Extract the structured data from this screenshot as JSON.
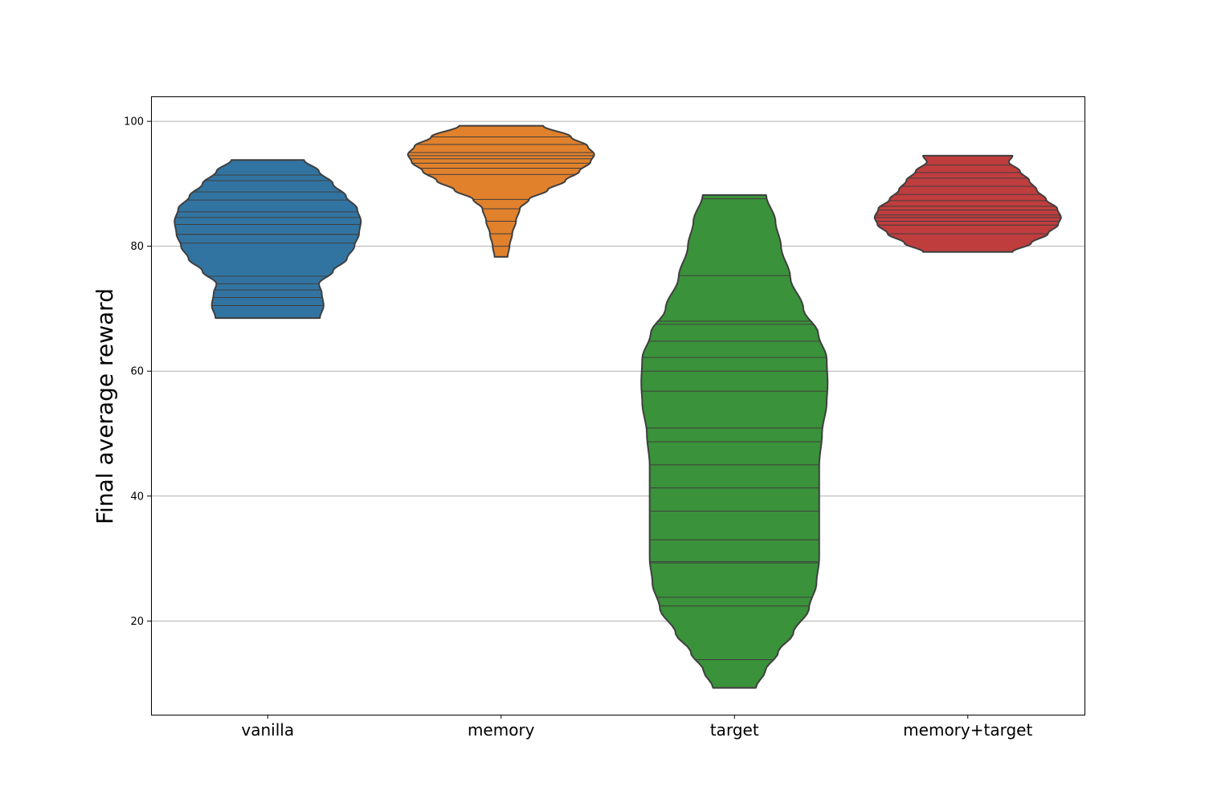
{
  "chart_data": {
    "type": "violin",
    "title": "",
    "xlabel": "",
    "ylabel": "Final average reward",
    "ylim": [
      5,
      104
    ],
    "yticks": [
      20,
      40,
      60,
      80,
      100
    ],
    "grid": "horizontal",
    "categories": [
      "vanilla",
      "memory",
      "target",
      "memory+target"
    ],
    "colors": [
      "#3274a1",
      "#e1812c",
      "#3a923a",
      "#c03d3e"
    ],
    "series": [
      {
        "category": "vanilla",
        "range": [
          68.5,
          93.8
        ],
        "observations": [
          68.5,
          70.5,
          71.8,
          73.0,
          74.0,
          75.2,
          80.5,
          81.9,
          81.9,
          83.5,
          84.6,
          85.5,
          87.4,
          88.7,
          90.5,
          91.4,
          93.8
        ],
        "density": [
          [
            68.5,
            0.56
          ],
          [
            70.5,
            0.6
          ],
          [
            72.5,
            0.58
          ],
          [
            74.0,
            0.55
          ],
          [
            76.0,
            0.7
          ],
          [
            78.0,
            0.85
          ],
          [
            80.0,
            0.93
          ],
          [
            82.0,
            0.98
          ],
          [
            84.0,
            1.0
          ],
          [
            86.0,
            0.96
          ],
          [
            88.0,
            0.84
          ],
          [
            90.0,
            0.7
          ],
          [
            92.0,
            0.55
          ],
          [
            93.8,
            0.39
          ]
        ]
      },
      {
        "category": "memory",
        "range": [
          78.3,
          99.3
        ],
        "observations": [
          78.3,
          80.0,
          82.0,
          84.0,
          86.0,
          87.5,
          91.5,
          92.5,
          93.3,
          94.0,
          94.5,
          95.0,
          96.3,
          97.5,
          99.3
        ],
        "density": [
          [
            78.3,
            0.07
          ],
          [
            80.0,
            0.09
          ],
          [
            82.0,
            0.12
          ],
          [
            84.0,
            0.16
          ],
          [
            86.0,
            0.2
          ],
          [
            87.5,
            0.3
          ],
          [
            89.0,
            0.5
          ],
          [
            90.5,
            0.69
          ],
          [
            92.0,
            0.84
          ],
          [
            93.5,
            0.96
          ],
          [
            94.7,
            1.0
          ],
          [
            96.0,
            0.93
          ],
          [
            97.5,
            0.75
          ],
          [
            99.3,
            0.45
          ]
        ]
      },
      {
        "category": "target",
        "range": [
          9.3,
          88.2
        ],
        "observations": [
          9.3,
          13.8,
          22.4,
          23.8,
          29.3,
          29.5,
          33.0,
          37.6,
          41.3,
          45.0,
          48.7,
          50.9,
          56.8,
          60.0,
          62.2,
          64.8,
          67.5,
          68.0,
          75.3,
          87.6,
          88.2
        ],
        "density": [
          [
            9.3,
            0.23
          ],
          [
            12.0,
            0.33
          ],
          [
            15.0,
            0.47
          ],
          [
            18.0,
            0.63
          ],
          [
            22.0,
            0.8
          ],
          [
            26.0,
            0.88
          ],
          [
            30.0,
            0.91
          ],
          [
            35.0,
            0.91
          ],
          [
            40.0,
            0.91
          ],
          [
            45.0,
            0.91
          ],
          [
            50.0,
            0.94
          ],
          [
            55.0,
            0.99
          ],
          [
            58.0,
            1.0
          ],
          [
            62.0,
            0.99
          ],
          [
            66.0,
            0.9
          ],
          [
            70.0,
            0.74
          ],
          [
            75.0,
            0.6
          ],
          [
            80.0,
            0.5
          ],
          [
            84.0,
            0.44
          ],
          [
            88.2,
            0.34
          ]
        ]
      },
      {
        "category": "memory+target",
        "range": [
          79.1,
          94.5
        ],
        "observations": [
          79.1,
          82.0,
          83.4,
          84.0,
          84.6,
          85.0,
          85.8,
          86.4,
          87.3,
          88.3,
          89.6,
          90.9,
          91.8,
          93.0,
          94.5
        ],
        "density": [
          [
            79.1,
            0.48
          ],
          [
            80.5,
            0.68
          ],
          [
            82.0,
            0.86
          ],
          [
            83.5,
            0.97
          ],
          [
            84.6,
            1.0
          ],
          [
            86.0,
            0.96
          ],
          [
            87.5,
            0.84
          ],
          [
            89.0,
            0.74
          ],
          [
            90.5,
            0.66
          ],
          [
            92.0,
            0.56
          ],
          [
            93.5,
            0.44
          ],
          [
            94.5,
            0.48
          ]
        ]
      }
    ]
  }
}
